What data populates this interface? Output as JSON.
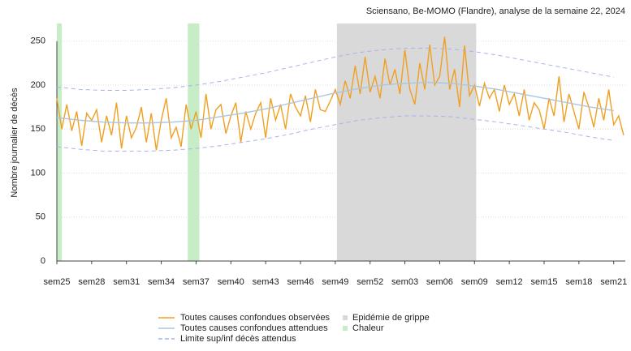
{
  "chart_data": {
    "type": "line",
    "title": "Sciensano, Be-MOMO (Flandre), analyse de la semaine 22, 2024",
    "y_label": "Nombre journalier de décès",
    "xlim": [
      0,
      343
    ],
    "ylim": [
      0,
      270
    ],
    "yticks": [
      0,
      50,
      100,
      150,
      200,
      250
    ],
    "grid": true,
    "xticks": [
      {
        "value": 0,
        "label": "sem25"
      },
      {
        "value": 21,
        "label": "sem28"
      },
      {
        "value": 42,
        "label": "sem31"
      },
      {
        "value": 63,
        "label": "sem34"
      },
      {
        "value": 84,
        "label": "sem37"
      },
      {
        "value": 105,
        "label": "sem40"
      },
      {
        "value": 126,
        "label": "sem43"
      },
      {
        "value": 147,
        "label": "sem46"
      },
      {
        "value": 168,
        "label": "sem49"
      },
      {
        "value": 189,
        "label": "sem52"
      },
      {
        "value": 210,
        "label": "sem03"
      },
      {
        "value": 231,
        "label": "sem06"
      },
      {
        "value": 252,
        "label": "sem09"
      },
      {
        "value": 273,
        "label": "sem12"
      },
      {
        "value": 294,
        "label": "sem15"
      },
      {
        "value": 315,
        "label": "sem18"
      },
      {
        "value": 336,
        "label": "sem21"
      }
    ],
    "regions": [
      {
        "name": "Epidémie de grippe",
        "color": "#d9d9d9",
        "spans": [
          [
            169,
            253
          ]
        ]
      },
      {
        "name": "Chaleur",
        "color": "#c6edc6",
        "spans": [
          [
            0,
            3
          ],
          [
            79,
            86
          ]
        ]
      }
    ],
    "series": [
      {
        "name": "Toutes causes confondues observées",
        "color": "#f0a020",
        "x": [
          0,
          3,
          6,
          9,
          12,
          15,
          18,
          21,
          24,
          27,
          30,
          33,
          36,
          39,
          42,
          45,
          48,
          51,
          54,
          57,
          60,
          63,
          66,
          69,
          72,
          75,
          78,
          81,
          84,
          87,
          90,
          93,
          96,
          99,
          102,
          105,
          108,
          111,
          114,
          117,
          120,
          123,
          126,
          129,
          132,
          135,
          138,
          141,
          144,
          147,
          150,
          153,
          156,
          159,
          162,
          165,
          168,
          171,
          174,
          177,
          180,
          183,
          186,
          189,
          192,
          195,
          198,
          201,
          204,
          207,
          210,
          213,
          216,
          219,
          222,
          225,
          228,
          231,
          234,
          237,
          240,
          243,
          246,
          249,
          252,
          255,
          258,
          261,
          264,
          267,
          270,
          273,
          276,
          279,
          282,
          285,
          288,
          291,
          294,
          297,
          300,
          303,
          306,
          309,
          312,
          315,
          318,
          321,
          324,
          327,
          330,
          333,
          336,
          339,
          342
        ],
        "values": [
          185,
          150,
          178,
          148,
          170,
          131,
          168,
          160,
          172,
          135,
          165,
          143,
          180,
          128,
          165,
          140,
          152,
          175,
          135,
          168,
          126,
          160,
          185,
          140,
          152,
          130,
          178,
          150,
          170,
          140,
          190,
          150,
          172,
          178,
          145,
          165,
          180,
          135,
          170,
          150,
          168,
          180,
          140,
          185,
          160,
          178,
          150,
          190,
          175,
          165,
          188,
          158,
          195,
          172,
          170,
          182,
          195,
          178,
          205,
          185,
          222,
          190,
          232,
          192,
          210,
          185,
          230,
          200,
          218,
          190,
          240,
          195,
          178,
          225,
          195,
          246,
          200,
          210,
          255,
          195,
          218,
          175,
          245,
          188,
          200,
          176,
          202,
          185,
          195,
          170,
          200,
          178,
          190,
          165,
          195,
          160,
          180,
          172,
          150,
          185,
          165,
          210,
          158,
          190,
          170,
          150,
          192,
          175,
          152,
          185,
          160,
          195,
          155,
          165,
          143
        ]
      },
      {
        "name": "Toutes causes confondues attendues",
        "color": "#a9c6e2",
        "x": [
          0,
          14,
          28,
          42,
          56,
          70,
          84,
          98,
          112,
          126,
          140,
          154,
          168,
          182,
          196,
          210,
          224,
          238,
          252,
          266,
          280,
          294,
          308,
          322,
          336
        ],
        "values": [
          163,
          160,
          158,
          157,
          157,
          158,
          160,
          164,
          168,
          173,
          179,
          185,
          191,
          196,
          200,
          202,
          203,
          202,
          199,
          195,
          190,
          185,
          180,
          175,
          171
        ]
      },
      {
        "name": "Limite sup/inf décès attendus",
        "color": "#a6b4ea",
        "dashed": true,
        "x": [
          0,
          14,
          28,
          42,
          56,
          70,
          84,
          98,
          112,
          126,
          140,
          154,
          168,
          182,
          196,
          210,
          224,
          238,
          252,
          266,
          280,
          294,
          308,
          322,
          336
        ],
        "upper": [
          198,
          195,
          194,
          194,
          195,
          197,
          200,
          204,
          209,
          214,
          220,
          226,
          232,
          237,
          240,
          242,
          242,
          241,
          238,
          234,
          229,
          224,
          219,
          214,
          209
        ],
        "lower": [
          130,
          127,
          125,
          125,
          125,
          126,
          128,
          131,
          135,
          139,
          144,
          150,
          155,
          160,
          163,
          165,
          165,
          164,
          161,
          158,
          154,
          150,
          146,
          141,
          137
        ]
      }
    ]
  }
}
